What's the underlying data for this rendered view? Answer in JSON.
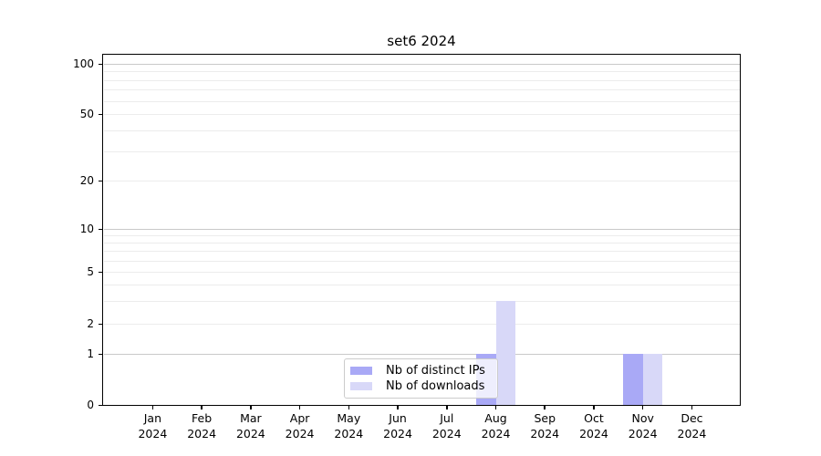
{
  "title": "set6 2024",
  "chart_data": {
    "type": "bar",
    "title": "set6 2024",
    "categories": [
      "Jan 2024",
      "Feb 2024",
      "Mar 2024",
      "Apr 2024",
      "May 2024",
      "Jun 2024",
      "Jul 2024",
      "Aug 2024",
      "Sep 2024",
      "Oct 2024",
      "Nov 2024",
      "Dec 2024"
    ],
    "series": [
      {
        "name": "Nb of distinct IPs",
        "color": "#a9a9f6",
        "values": [
          0,
          0,
          0,
          0,
          0,
          0,
          0,
          1,
          0,
          0,
          1,
          0
        ]
      },
      {
        "name": "Nb of downloads",
        "color": "#d8d8f8",
        "values": [
          0,
          0,
          0,
          0,
          0,
          0,
          0,
          3,
          0,
          0,
          1,
          0
        ]
      }
    ],
    "yscale": "symlog",
    "ylim": [
      0,
      114
    ],
    "y_tick_labels": [
      0,
      1,
      2,
      5,
      10,
      20,
      50,
      100
    ],
    "y_gridlines_major": [
      1,
      10,
      100
    ],
    "y_gridlines_minor": [
      2,
      3,
      4,
      5,
      6,
      7,
      8,
      9,
      20,
      30,
      40,
      50,
      60,
      70,
      80,
      90
    ],
    "grid": true,
    "legend_position": "inside-bottom-center"
  },
  "colors": {
    "background": "#ffffff",
    "axis": "#000000",
    "grid_major": "#c9c9c9",
    "grid_minor": "#ececec",
    "legend_border": "#cccccc",
    "legend_background": "rgba(255,255,255,0.8)",
    "tick_label": "#000000"
  }
}
